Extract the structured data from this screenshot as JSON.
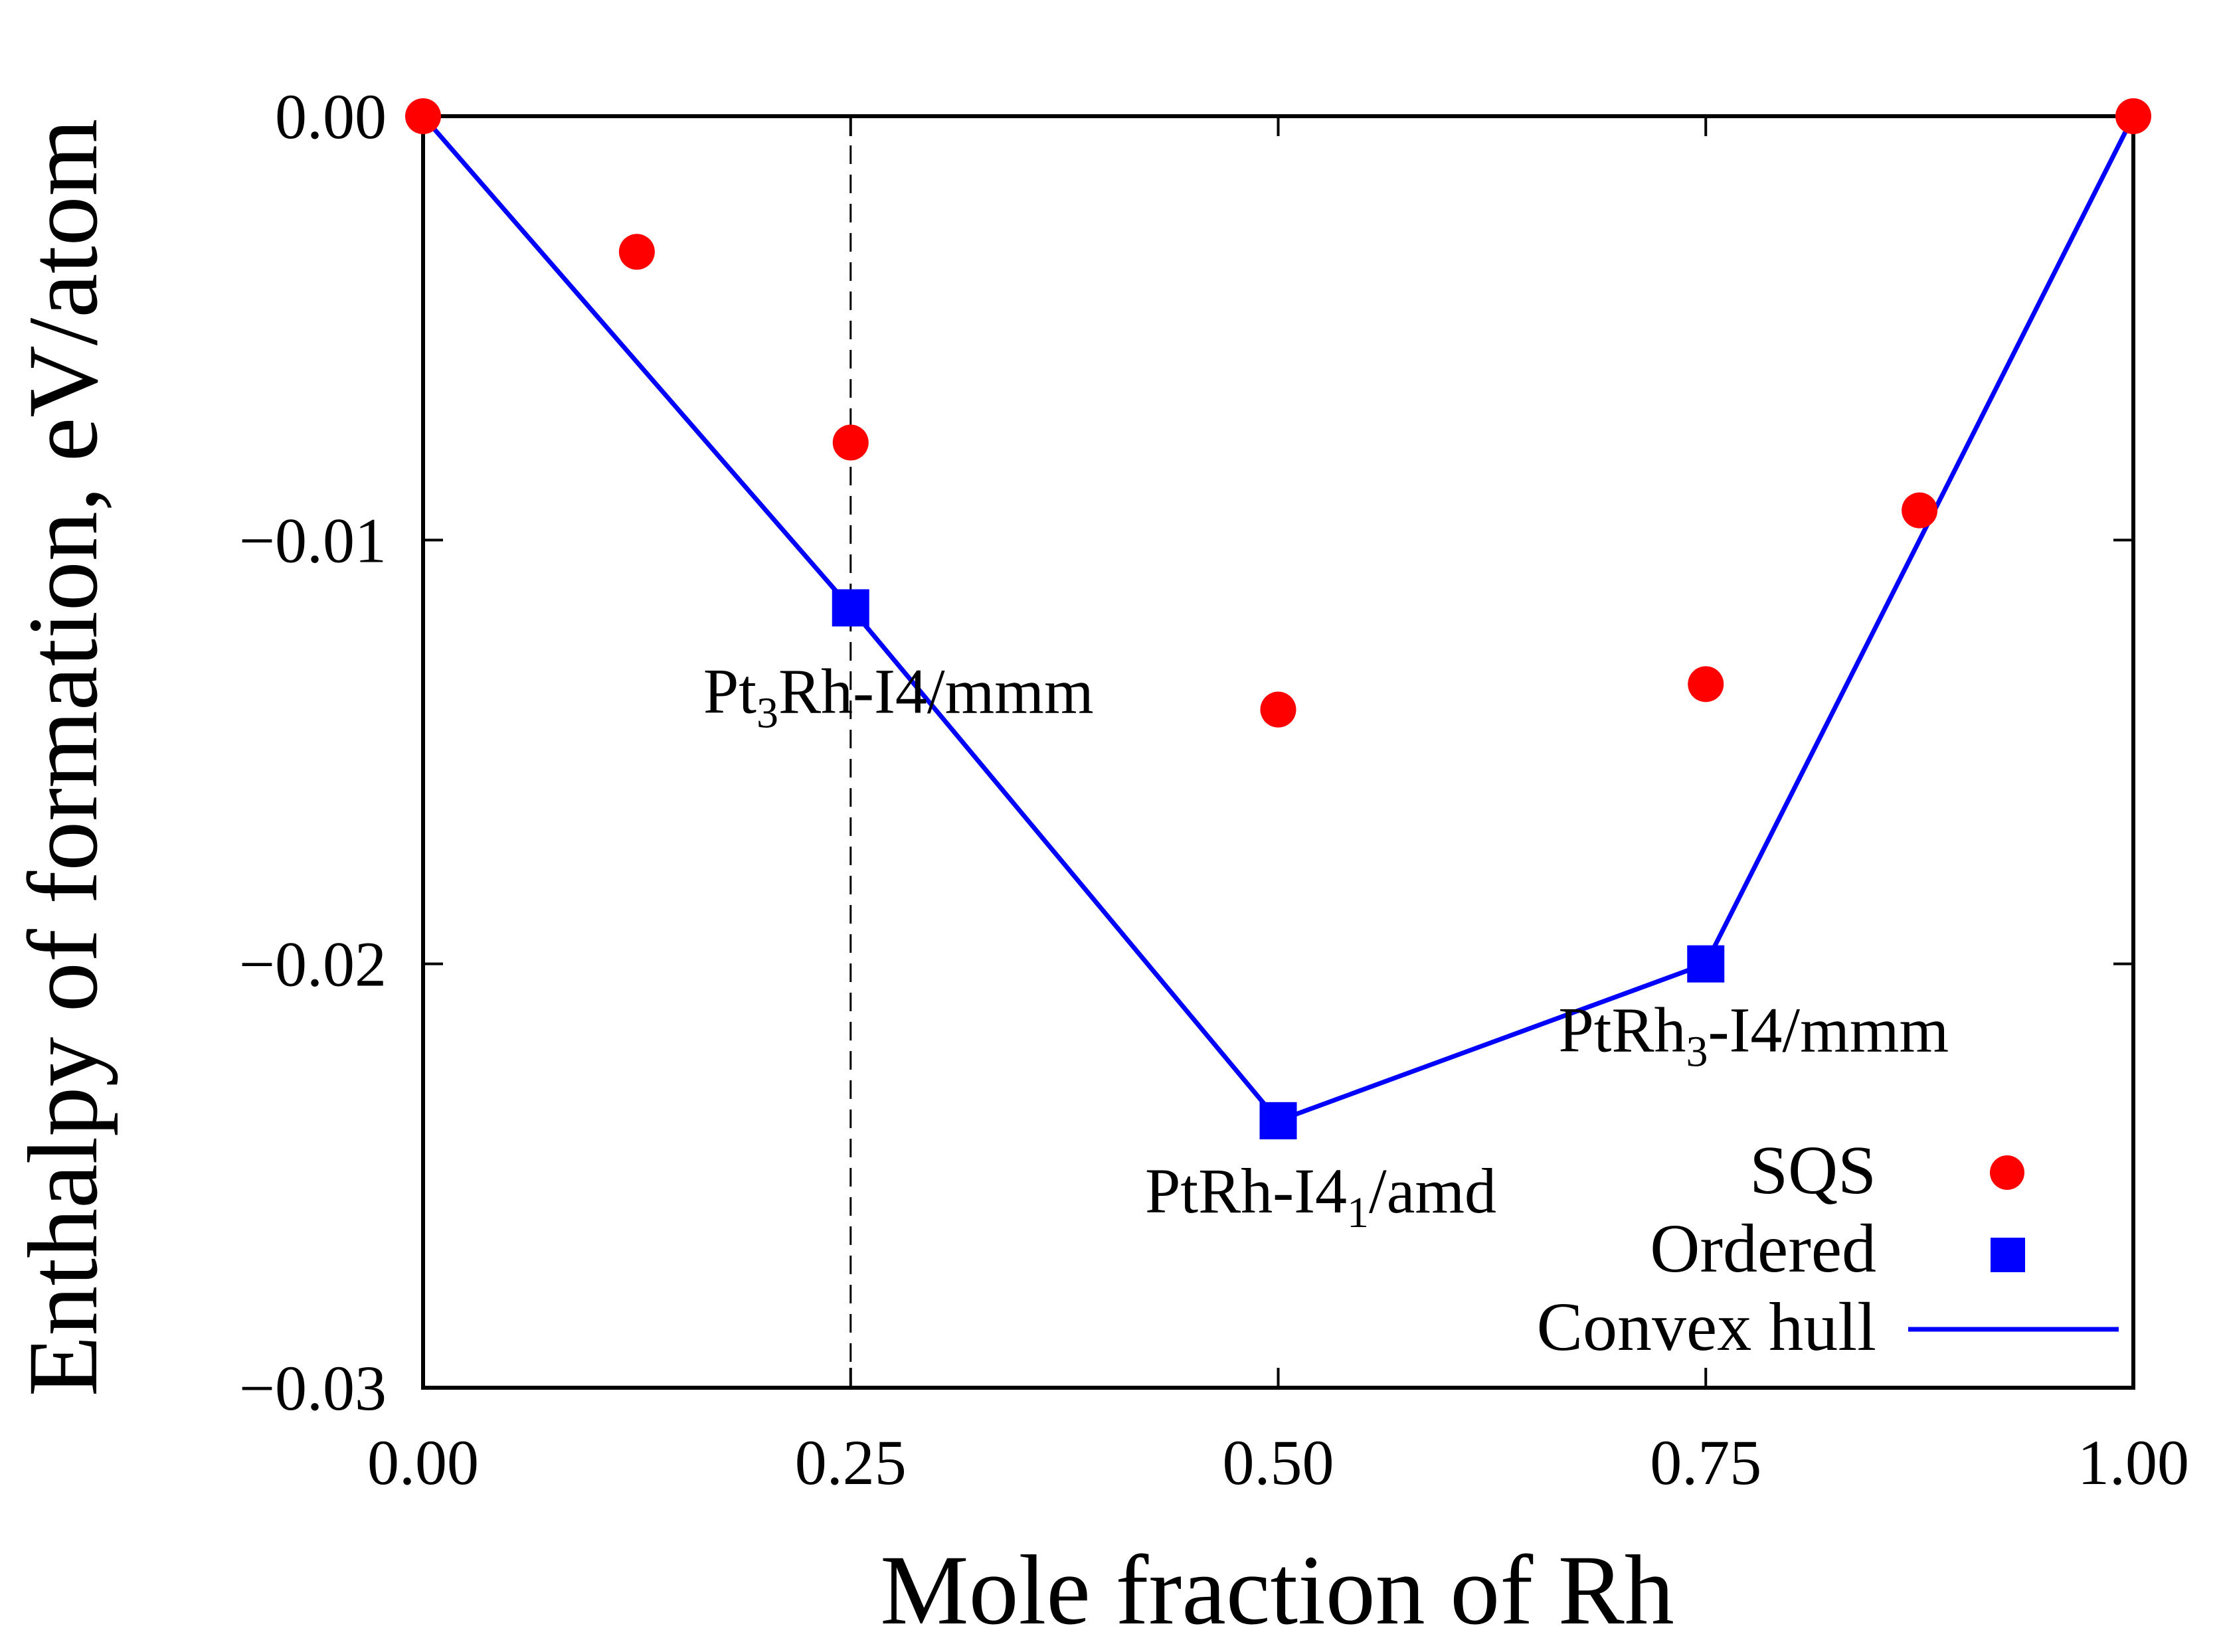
{
  "chart_data": {
    "type": "scatter",
    "xlabel": "Mole fraction of Rh",
    "ylabel": "Enthalpy of formation, eV/atom",
    "xlim": [
      0.0,
      1.0
    ],
    "ylim": [
      -0.03,
      0.0
    ],
    "x_ticks": [
      {
        "value": 0.0,
        "label": "0.00"
      },
      {
        "value": 0.25,
        "label": "0.25"
      },
      {
        "value": 0.5,
        "label": "0.50"
      },
      {
        "value": 0.75,
        "label": "0.75"
      },
      {
        "value": 1.0,
        "label": "1.00"
      }
    ],
    "y_ticks": [
      {
        "value": 0.0,
        "label": "0.00"
      },
      {
        "value": -0.01,
        "label": "−0.01"
      },
      {
        "value": -0.02,
        "label": "−0.02"
      },
      {
        "value": -0.03,
        "label": "−0.03"
      }
    ],
    "grid": false,
    "legend_position": "bottom-right",
    "reference_line": {
      "x": 0.25,
      "style": "dashed"
    },
    "series": [
      {
        "name": "SQS",
        "marker": "circle",
        "color": "#ff0000",
        "x": [
          0.0,
          0.125,
          0.25,
          0.5,
          0.75,
          0.875,
          1.0
        ],
        "y": [
          0.0,
          -0.0032,
          -0.0077,
          -0.014,
          -0.0134,
          -0.0093,
          0.0
        ]
      },
      {
        "name": "Ordered",
        "marker": "square",
        "color": "#0000ff",
        "x": [
          0.25,
          0.5,
          0.75
        ],
        "y": [
          -0.0116,
          -0.0237,
          -0.02
        ]
      },
      {
        "name": "Convex hull",
        "marker": "line",
        "color": "#0000ff",
        "x": [
          0.0,
          0.25,
          0.5,
          0.75,
          1.0
        ],
        "y": [
          0.0,
          -0.0116,
          -0.0237,
          -0.02,
          0.0
        ]
      }
    ],
    "annotations": [
      {
        "main": "Pt",
        "sub": "3",
        "rest": "Rh-I4/mmm",
        "x": 0.25,
        "y": -0.0116
      },
      {
        "main": "PtRh",
        "sub": "3",
        "rest": "-I4/mmm",
        "x": 0.75,
        "y": -0.02
      },
      {
        "main": "PtRh-I4",
        "sub": "1",
        "rest": "/amd",
        "x": 0.5,
        "y": -0.0237
      }
    ]
  }
}
